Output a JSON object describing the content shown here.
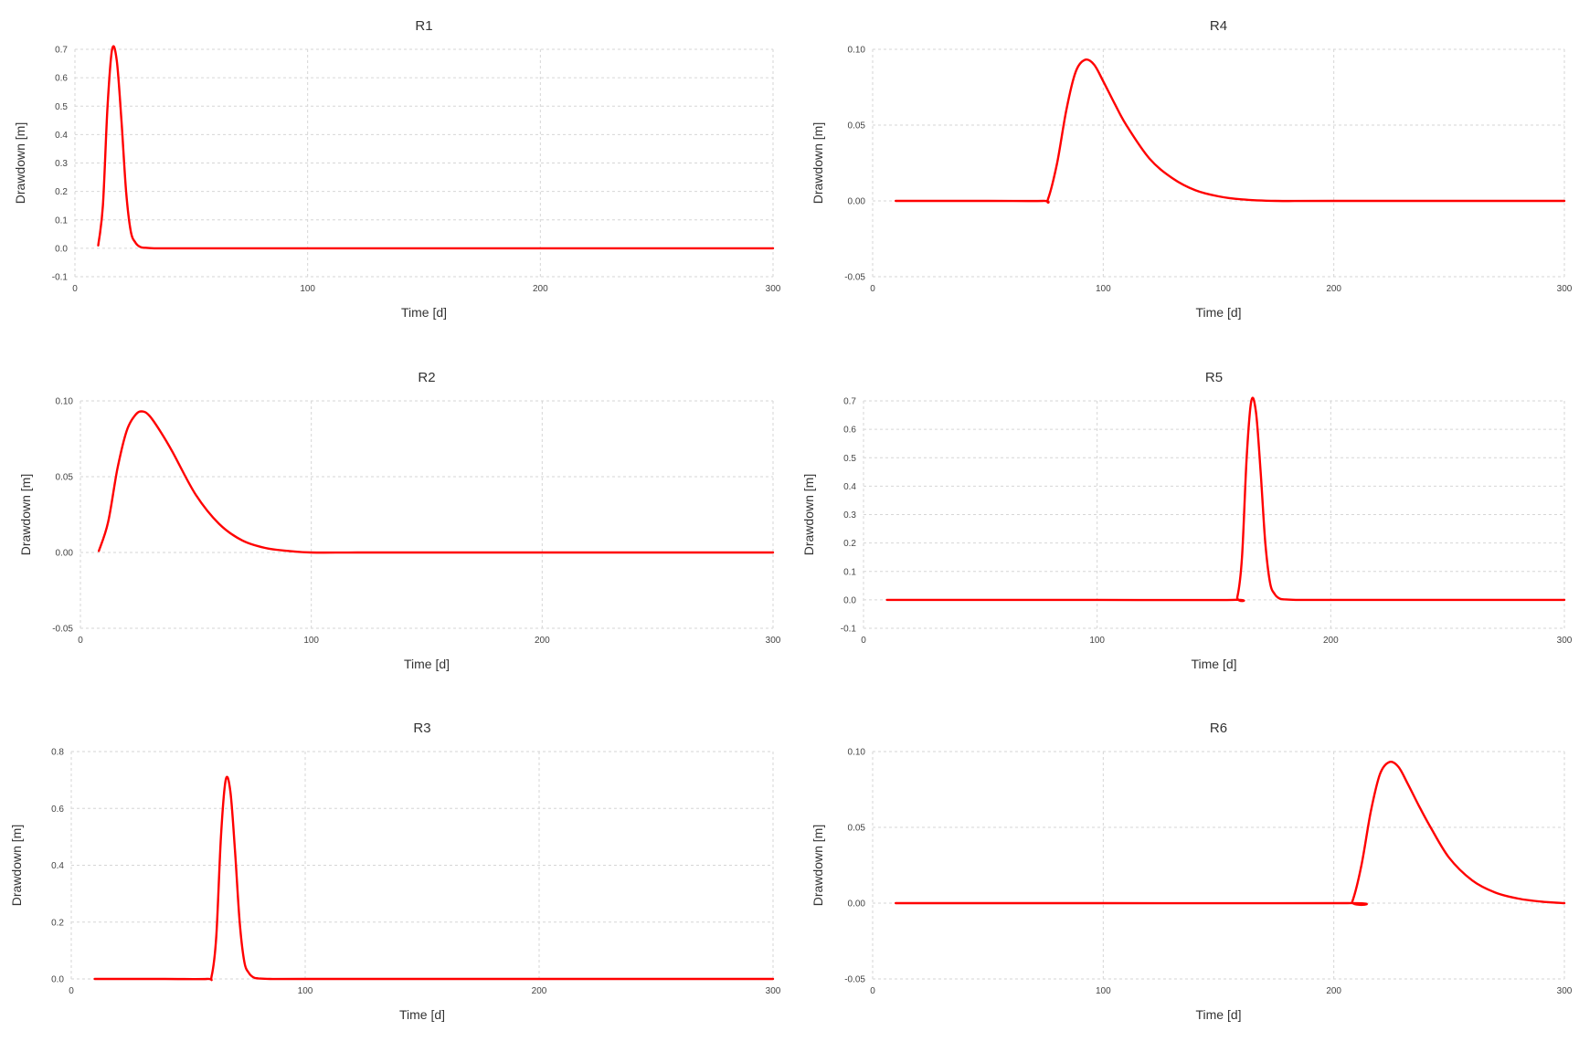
{
  "colors": {
    "series": "#ff0000",
    "grid": "#d6d6d6",
    "text": "#333333"
  },
  "chart_data": [
    {
      "type": "line",
      "title": "R1",
      "xlabel": "Time [d]",
      "ylabel": "Drawdown [m]",
      "xlim": [
        0,
        300
      ],
      "ylim": [
        -0.1,
        0.7
      ],
      "grid": true,
      "legend": "none",
      "xticks": [
        0,
        100,
        200,
        300
      ],
      "yticks": [
        -0.1,
        0.0,
        0.1,
        0.2,
        0.3,
        0.4,
        0.5,
        0.6,
        0.7
      ],
      "ytick_labels": [
        "-0.1",
        "0.0",
        "0.1",
        "0.2",
        "0.3",
        "0.4",
        "0.5",
        "0.6",
        "0.7"
      ],
      "series": [
        {
          "x": [
            10,
            12,
            14,
            16,
            18,
            20,
            22,
            24,
            26,
            28,
            30,
            34,
            40,
            60,
            100,
            200,
            300
          ],
          "y": [
            0.01,
            0.15,
            0.5,
            0.7,
            0.66,
            0.45,
            0.2,
            0.06,
            0.02,
            0.005,
            0.002,
            0.0,
            0.0,
            0.0,
            0.0,
            0.0,
            0.0
          ]
        }
      ]
    },
    {
      "type": "line",
      "title": "R2",
      "xlabel": "Time [d]",
      "ylabel": "Drawdown [m]",
      "xlim": [
        0,
        300
      ],
      "ylim": [
        -0.05,
        0.1
      ],
      "grid": true,
      "legend": "none",
      "xticks": [
        0,
        100,
        200,
        300
      ],
      "yticks": [
        -0.05,
        0.0,
        0.05,
        0.1
      ],
      "ytick_labels": [
        "-0.05",
        "0.00",
        "0.05",
        "0.10"
      ],
      "series": [
        {
          "x": [
            8,
            12,
            16,
            20,
            24,
            27,
            30,
            35,
            40,
            50,
            60,
            70,
            80,
            90,
            100,
            120,
            160,
            200,
            300
          ],
          "y": [
            0.001,
            0.02,
            0.055,
            0.08,
            0.091,
            0.093,
            0.09,
            0.079,
            0.066,
            0.038,
            0.019,
            0.008,
            0.003,
            0.001,
            0.0,
            0.0,
            0.0,
            0.0,
            0.0
          ]
        }
      ]
    },
    {
      "type": "line",
      "title": "R3",
      "xlabel": "Time [d]",
      "ylabel": "Drawdown [m]",
      "xlim": [
        0,
        300
      ],
      "ylim": [
        0,
        0.8
      ],
      "grid": true,
      "legend": "none",
      "xticks": [
        0,
        100,
        200,
        300
      ],
      "yticks": [
        0.0,
        0.2,
        0.4,
        0.6,
        0.8
      ],
      "ytick_labels": [
        "0.0",
        "0.2",
        "0.4",
        "0.6",
        "0.8"
      ],
      "series": [
        {
          "x": [
            10,
            40,
            58,
            60,
            62,
            64,
            66,
            68,
            70,
            72,
            74,
            76,
            78,
            80,
            85,
            100,
            200,
            300
          ],
          "y": [
            0.0,
            0.0,
            0.0,
            0.01,
            0.15,
            0.5,
            0.7,
            0.66,
            0.45,
            0.2,
            0.06,
            0.02,
            0.005,
            0.002,
            0.0,
            0.0,
            0.0,
            0.0
          ]
        }
      ]
    },
    {
      "type": "line",
      "title": "R4",
      "xlabel": "Time [d]",
      "ylabel": "Drawdown [m]",
      "xlim": [
        0,
        300
      ],
      "ylim": [
        -0.05,
        0.1
      ],
      "grid": true,
      "legend": "none",
      "xticks": [
        0,
        100,
        200,
        300
      ],
      "yticks": [
        -0.05,
        0.0,
        0.05,
        0.1
      ],
      "ytick_labels": [
        "-0.05",
        "0.00",
        "0.05",
        "0.10"
      ],
      "series": [
        {
          "x": [
            10,
            50,
            74,
            76,
            80,
            84,
            88,
            92,
            96,
            100,
            105,
            110,
            120,
            130,
            140,
            150,
            160,
            175,
            200,
            300
          ],
          "y": [
            0.0,
            0.0,
            0.0,
            0.001,
            0.025,
            0.06,
            0.085,
            0.093,
            0.09,
            0.079,
            0.064,
            0.05,
            0.028,
            0.015,
            0.007,
            0.003,
            0.001,
            0.0,
            0.0,
            0.0
          ]
        }
      ]
    },
    {
      "type": "line",
      "title": "R5",
      "xlabel": "Time [d]",
      "ylabel": "Drawdown [m]",
      "xlim": [
        0,
        300
      ],
      "ylim": [
        -0.1,
        0.7
      ],
      "grid": true,
      "legend": "none",
      "xticks": [
        0,
        100,
        200,
        300
      ],
      "yticks": [
        -0.1,
        0.0,
        0.1,
        0.2,
        0.3,
        0.4,
        0.5,
        0.6,
        0.7
      ],
      "ytick_labels": [
        "-0.1",
        "0.0",
        "0.1",
        "0.2",
        "0.3",
        "0.4",
        "0.5",
        "0.6",
        "0.7"
      ],
      "series": [
        {
          "x": [
            10,
            100,
            158,
            160,
            162,
            164,
            166,
            168,
            170,
            172,
            174,
            176,
            178,
            180,
            185,
            200,
            300
          ],
          "y": [
            0.0,
            0.0,
            0.0,
            0.01,
            0.15,
            0.5,
            0.7,
            0.66,
            0.45,
            0.2,
            0.06,
            0.02,
            0.005,
            0.002,
            0.0,
            0.0,
            0.0
          ]
        }
      ]
    },
    {
      "type": "line",
      "title": "R6",
      "xlabel": "Time [d]",
      "ylabel": "Drawdown [m]",
      "xlim": [
        0,
        300
      ],
      "ylim": [
        -0.05,
        0.1
      ],
      "grid": true,
      "legend": "none",
      "xticks": [
        0,
        100,
        200,
        300
      ],
      "yticks": [
        -0.05,
        0.0,
        0.05,
        0.1
      ],
      "ytick_labels": [
        "-0.05",
        "0.00",
        "0.05",
        "0.10"
      ],
      "series": [
        {
          "x": [
            10,
            100,
            206,
            208,
            212,
            216,
            220,
            224,
            228,
            232,
            237,
            242,
            250,
            260,
            270,
            280,
            290,
            300
          ],
          "y": [
            0.0,
            0.0,
            0.0,
            0.001,
            0.025,
            0.06,
            0.085,
            0.093,
            0.09,
            0.079,
            0.064,
            0.05,
            0.03,
            0.015,
            0.007,
            0.003,
            0.001,
            0.0
          ]
        }
      ]
    }
  ]
}
